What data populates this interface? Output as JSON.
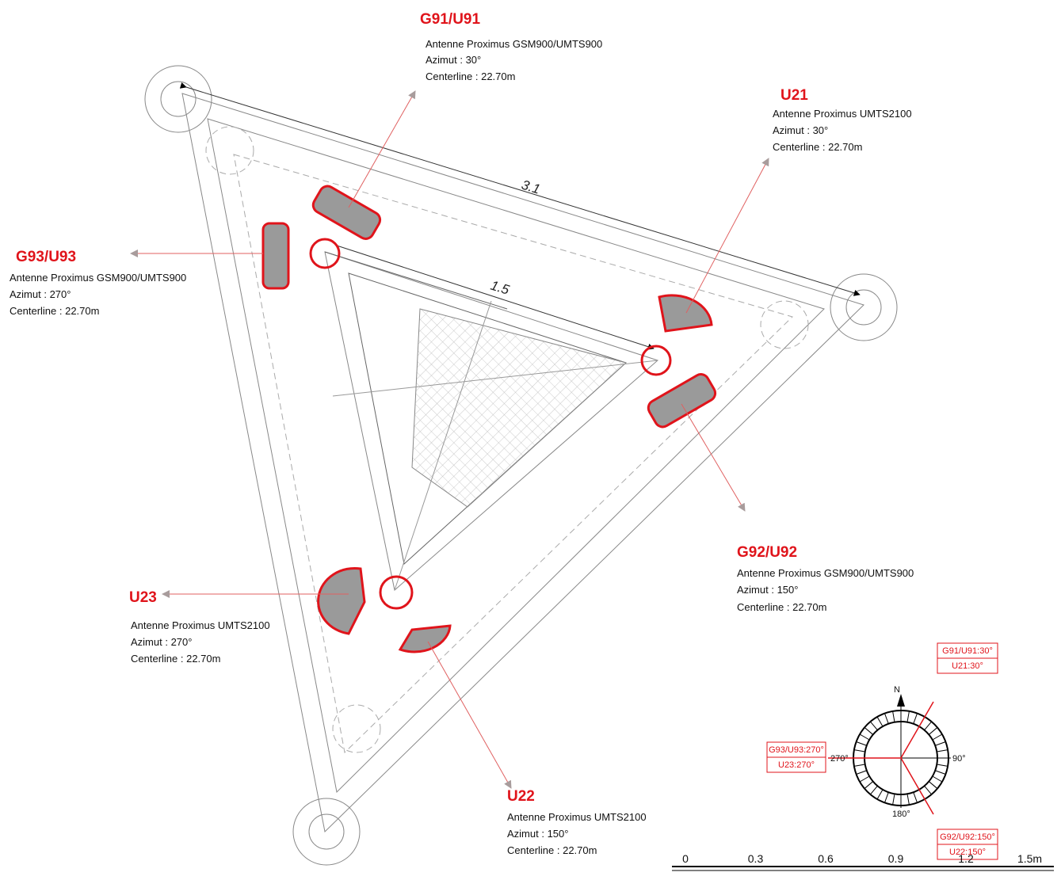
{
  "antennas": [
    {
      "id": "G91/U91",
      "model": "Antenne Proximus GSM900/UMTS900",
      "azimuth": "Azimut : 30°",
      "centerline": "Centerline : 22.70m"
    },
    {
      "id": "U21",
      "model": "Antenne Proximus UMTS2100",
      "azimuth": "Azimut : 30°",
      "centerline": "Centerline : 22.70m"
    },
    {
      "id": "G93/U93",
      "model": "Antenne Proximus GSM900/UMTS900",
      "azimuth": "Azimut : 270°",
      "centerline": "Centerline : 22.70m"
    },
    {
      "id": "G92/U92",
      "model": "Antenne Proximus GSM900/UMTS900",
      "azimuth": "Azimut : 150°",
      "centerline": "Centerline : 22.70m"
    },
    {
      "id": "U23",
      "model": "Antenne Proximus UMTS2100",
      "azimuth": "Azimut : 270°",
      "centerline": "Centerline : 22.70m"
    },
    {
      "id": "U22",
      "model": "Antenne Proximus UMTS2100",
      "azimuth": "Azimut : 150°",
      "centerline": "Centerline : 22.70m"
    }
  ],
  "dimensions": [
    "3.1",
    "1.5"
  ],
  "compass": {
    "north": "N",
    "labels": [
      "270°",
      "90°",
      "180°"
    ],
    "boxes": [
      [
        "G91/U91:30°",
        "U21:30°"
      ],
      [
        "G93/U93:270°",
        "U23:270°"
      ],
      [
        "G92/U92:150°",
        "U22:150°"
      ]
    ]
  },
  "scale": {
    "labels": [
      "0",
      "0.3",
      "0.6",
      "0.9",
      "1.2",
      "1.5m"
    ]
  }
}
